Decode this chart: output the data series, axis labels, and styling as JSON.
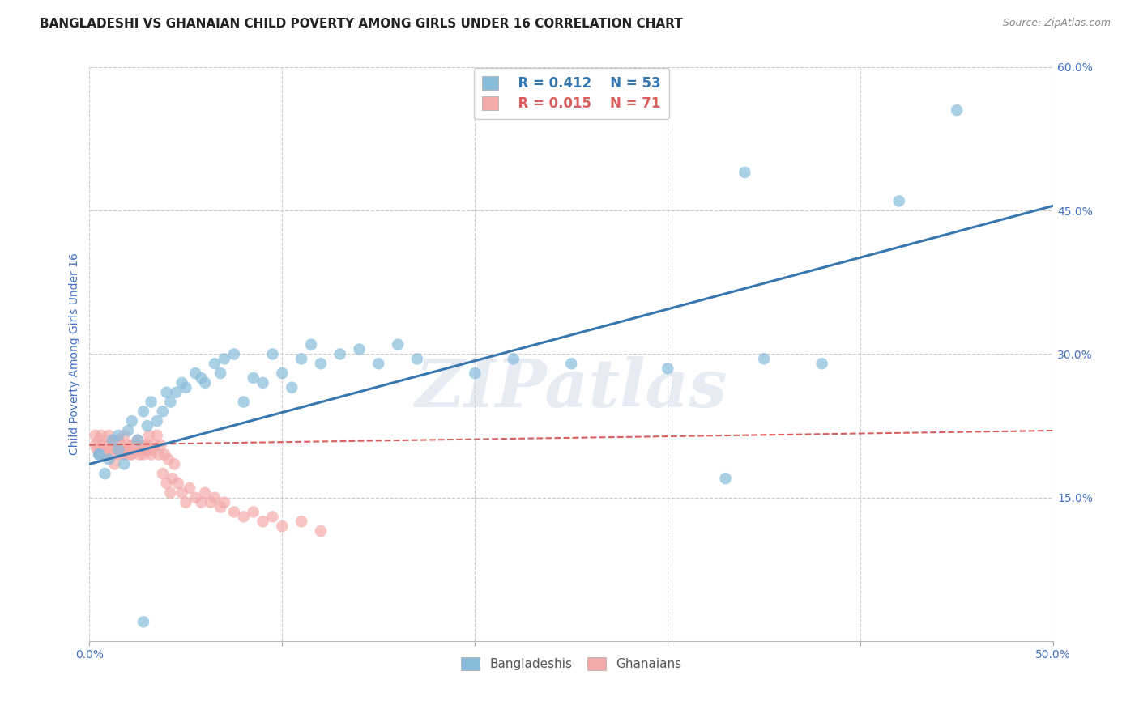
{
  "title": "BANGLADESHI VS GHANAIAN CHILD POVERTY AMONG GIRLS UNDER 16 CORRELATION CHART",
  "source": "Source: ZipAtlas.com",
  "ylabel": "Child Poverty Among Girls Under 16",
  "xlim": [
    0.0,
    0.5
  ],
  "ylim": [
    0.0,
    0.6
  ],
  "yticks": [
    0.15,
    0.3,
    0.45,
    0.6
  ],
  "ytick_labels": [
    "15.0%",
    "30.0%",
    "45.0%",
    "60.0%"
  ],
  "xticks": [
    0.0,
    0.1,
    0.2,
    0.3,
    0.4,
    0.5
  ],
  "xtick_labels": [
    "0.0%",
    "",
    "",
    "",
    "",
    "50.0%"
  ],
  "blue_color": "#87BCDB",
  "pink_color": "#F4AAAA",
  "blue_line_color": "#3777B0",
  "pink_line_color": "#D95F5F",
  "grid_color": "#cccccc",
  "watermark": "ZIPatlas",
  "legend_r_blue": "R = 0.412",
  "legend_n_blue": "N = 53",
  "legend_r_pink": "R = 0.015",
  "legend_n_pink": "N = 71",
  "legend_label_blue": "Bangladeshis",
  "legend_label_pink": "Ghanaians",
  "blue_scatter_x": [
    0.005,
    0.008,
    0.01,
    0.012,
    0.015,
    0.015,
    0.018,
    0.02,
    0.022,
    0.025,
    0.028,
    0.03,
    0.032,
    0.035,
    0.038,
    0.04,
    0.042,
    0.045,
    0.048,
    0.05,
    0.055,
    0.058,
    0.06,
    0.065,
    0.068,
    0.07,
    0.075,
    0.08,
    0.085,
    0.09,
    0.095,
    0.1,
    0.105,
    0.11,
    0.115,
    0.12,
    0.13,
    0.14,
    0.15,
    0.16,
    0.17,
    0.2,
    0.22,
    0.25,
    0.3,
    0.33,
    0.35,
    0.38,
    0.42,
    0.45,
    0.34,
    0.028,
    0.005
  ],
  "blue_scatter_y": [
    0.195,
    0.175,
    0.19,
    0.21,
    0.2,
    0.215,
    0.185,
    0.22,
    0.23,
    0.21,
    0.24,
    0.225,
    0.25,
    0.23,
    0.24,
    0.26,
    0.25,
    0.26,
    0.27,
    0.265,
    0.28,
    0.275,
    0.27,
    0.29,
    0.28,
    0.295,
    0.3,
    0.25,
    0.275,
    0.27,
    0.3,
    0.28,
    0.265,
    0.295,
    0.31,
    0.29,
    0.3,
    0.305,
    0.29,
    0.31,
    0.295,
    0.28,
    0.295,
    0.29,
    0.285,
    0.17,
    0.295,
    0.29,
    0.46,
    0.555,
    0.49,
    0.02,
    0.195
  ],
  "pink_scatter_x": [
    0.003,
    0.003,
    0.004,
    0.005,
    0.005,
    0.006,
    0.007,
    0.008,
    0.008,
    0.01,
    0.01,
    0.01,
    0.012,
    0.012,
    0.013,
    0.014,
    0.015,
    0.015,
    0.016,
    0.017,
    0.018,
    0.018,
    0.019,
    0.02,
    0.02,
    0.021,
    0.022,
    0.022,
    0.023,
    0.024,
    0.025,
    0.025,
    0.026,
    0.027,
    0.028,
    0.029,
    0.03,
    0.03,
    0.031,
    0.032,
    0.033,
    0.034,
    0.035,
    0.036,
    0.037,
    0.038,
    0.039,
    0.04,
    0.041,
    0.042,
    0.043,
    0.044,
    0.046,
    0.048,
    0.05,
    0.052,
    0.055,
    0.058,
    0.06,
    0.063,
    0.065,
    0.068,
    0.07,
    0.075,
    0.08,
    0.085,
    0.09,
    0.095,
    0.1,
    0.11,
    0.12
  ],
  "pink_scatter_y": [
    0.205,
    0.215,
    0.2,
    0.21,
    0.195,
    0.215,
    0.205,
    0.2,
    0.195,
    0.215,
    0.205,
    0.2,
    0.21,
    0.195,
    0.185,
    0.2,
    0.195,
    0.21,
    0.205,
    0.195,
    0.2,
    0.215,
    0.195,
    0.2,
    0.205,
    0.195,
    0.205,
    0.195,
    0.2,
    0.205,
    0.2,
    0.21,
    0.195,
    0.2,
    0.195,
    0.205,
    0.2,
    0.205,
    0.215,
    0.195,
    0.2,
    0.205,
    0.215,
    0.195,
    0.205,
    0.175,
    0.195,
    0.165,
    0.19,
    0.155,
    0.17,
    0.185,
    0.165,
    0.155,
    0.145,
    0.16,
    0.15,
    0.145,
    0.155,
    0.145,
    0.15,
    0.14,
    0.145,
    0.135,
    0.13,
    0.135,
    0.125,
    0.13,
    0.12,
    0.125,
    0.115
  ],
  "blue_trend_x": [
    0.0,
    0.5
  ],
  "blue_trend_y": [
    0.185,
    0.455
  ],
  "pink_trend_x": [
    0.0,
    0.5
  ],
  "pink_trend_y": [
    0.205,
    0.22
  ],
  "background_color": "#ffffff",
  "title_color": "#222222",
  "axis_label_color": "#4472c4",
  "tick_color": "#4472c4",
  "source_color": "#888888"
}
